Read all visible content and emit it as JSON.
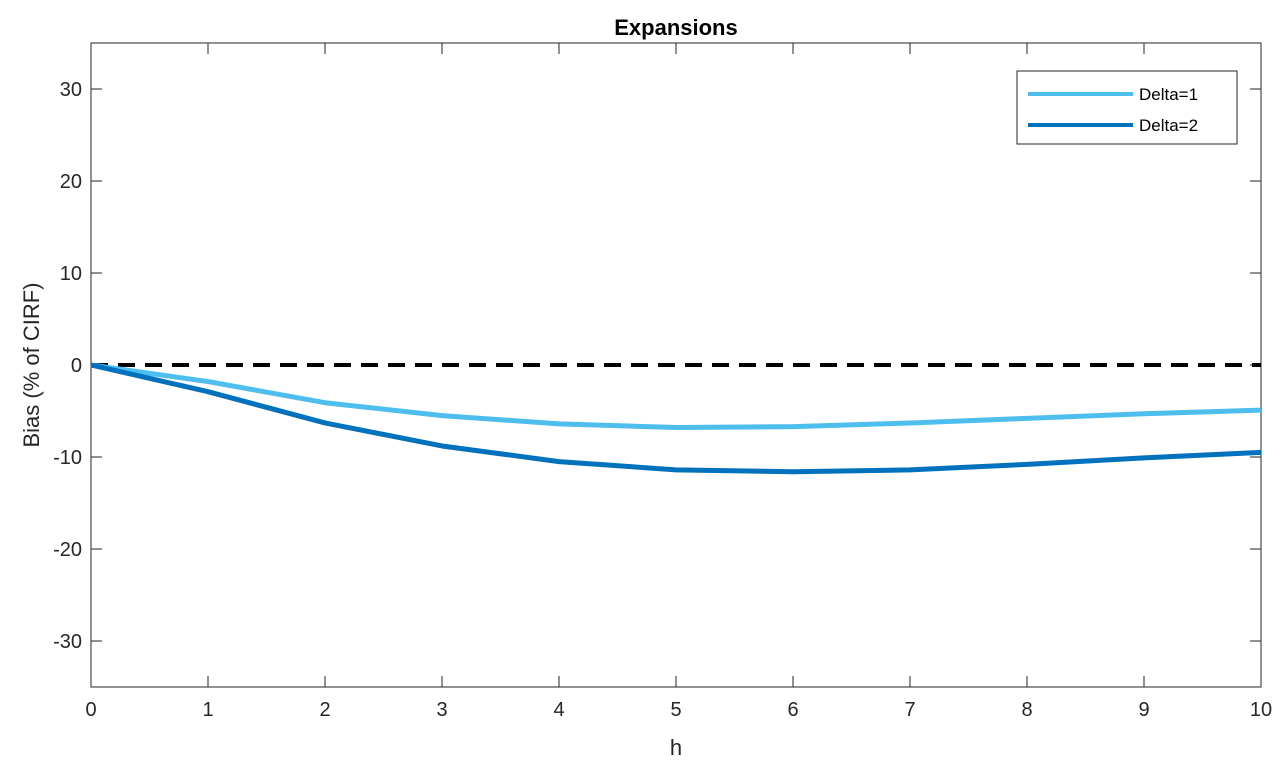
{
  "chart_data": {
    "type": "line",
    "title": "Expansions",
    "xlabel": "h",
    "ylabel": "Bias (% of CIRF)",
    "xlim": [
      0,
      10
    ],
    "ylim": [
      -35,
      35
    ],
    "xticks": [
      0,
      1,
      2,
      3,
      4,
      5,
      6,
      7,
      8,
      9,
      10
    ],
    "yticks": [
      -30,
      -20,
      -10,
      0,
      10,
      20,
      30
    ],
    "ytick_labels": [
      "-30",
      "-20",
      "-10",
      "0",
      "10",
      "20",
      "30"
    ],
    "grid": false,
    "legend_position": "top-right",
    "x": [
      0,
      1,
      2,
      3,
      4,
      5,
      6,
      7,
      8,
      9,
      10
    ],
    "series": [
      {
        "name": "Delta=1",
        "color": "#4DBEEE",
        "values": [
          0,
          -1.8,
          -4.1,
          -5.5,
          -6.4,
          -6.8,
          -6.7,
          -6.3,
          -5.8,
          -5.3,
          -4.9
        ]
      },
      {
        "name": "Delta=2",
        "color": "#0072BD",
        "values": [
          0,
          -2.9,
          -6.3,
          -8.8,
          -10.5,
          -11.4,
          -11.6,
          -11.4,
          -10.8,
          -10.1,
          -9.5
        ]
      }
    ],
    "reference_line": {
      "y": 0,
      "style": "dashed",
      "color": "#000000"
    }
  }
}
